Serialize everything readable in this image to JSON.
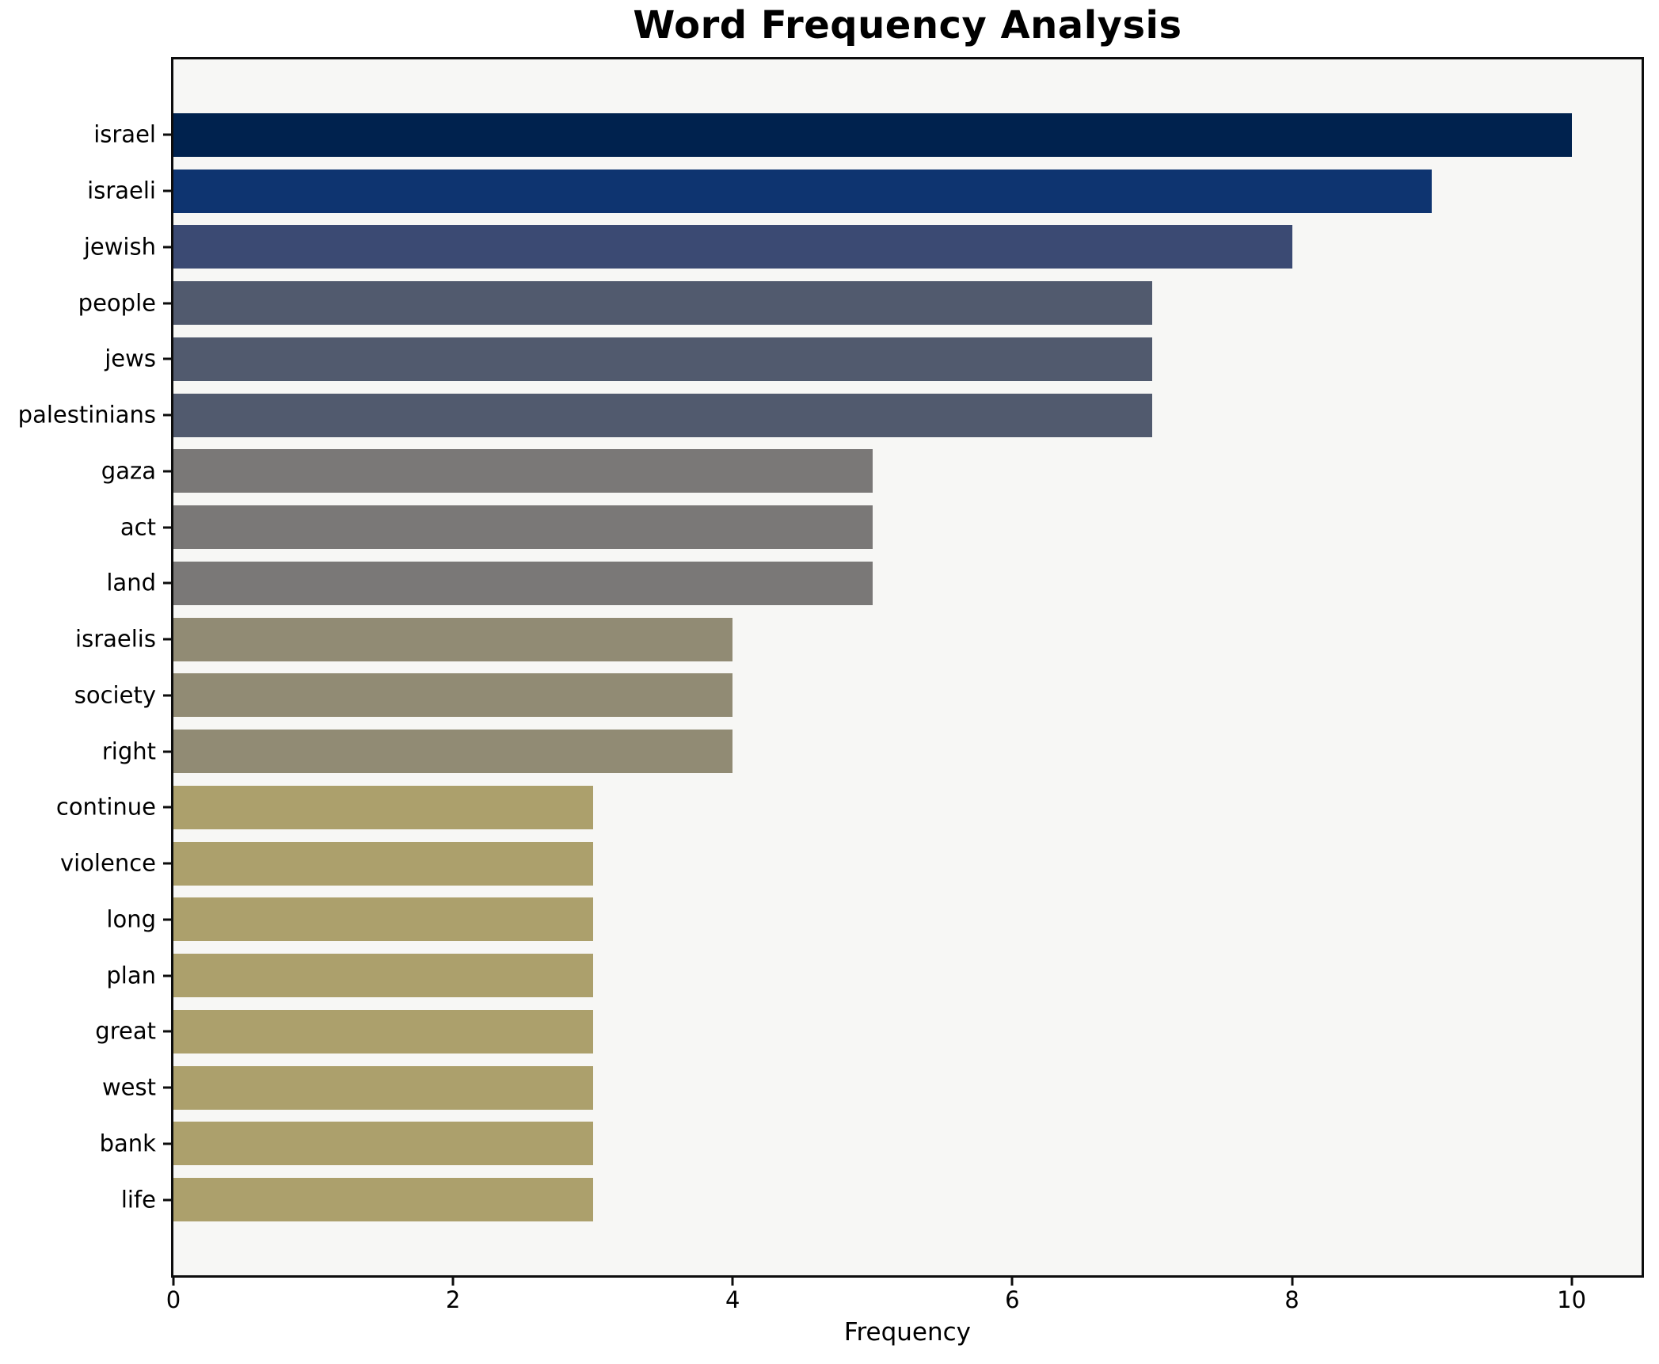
{
  "chart_data": {
    "type": "bar",
    "orientation": "horizontal",
    "title": "Word Frequency Analysis",
    "xlabel": "Frequency",
    "ylabel": "",
    "xlim": [
      0,
      10.5
    ],
    "xticks": [
      0,
      2,
      4,
      6,
      8,
      10
    ],
    "grid": false,
    "legend": false,
    "categories": [
      "israel",
      "israeli",
      "jewish",
      "people",
      "jews",
      "palestinians",
      "gaza",
      "act",
      "land",
      "israelis",
      "society",
      "right",
      "continue",
      "violence",
      "long",
      "plan",
      "great",
      "west",
      "bank",
      "life"
    ],
    "values": [
      10,
      9,
      8,
      7,
      7,
      7,
      5,
      5,
      5,
      4,
      4,
      4,
      3,
      3,
      3,
      3,
      3,
      3,
      3,
      3
    ],
    "bar_colors": [
      "#00224e",
      "#0e3470",
      "#3b4a73",
      "#515a6e",
      "#515a6e",
      "#515a6e",
      "#7a7877",
      "#7a7877",
      "#7a7877",
      "#918b74",
      "#918b74",
      "#918b74",
      "#aca06c",
      "#aca06c",
      "#aca06c",
      "#aca06c",
      "#aca06c",
      "#aca06c",
      "#aca06c",
      "#aca06c"
    ],
    "colormap": "cividis",
    "plot_background": "#f7f7f5",
    "figure_background": "#ffffff",
    "axis_color": "#0d0d0d",
    "text_color": "#000000"
  }
}
